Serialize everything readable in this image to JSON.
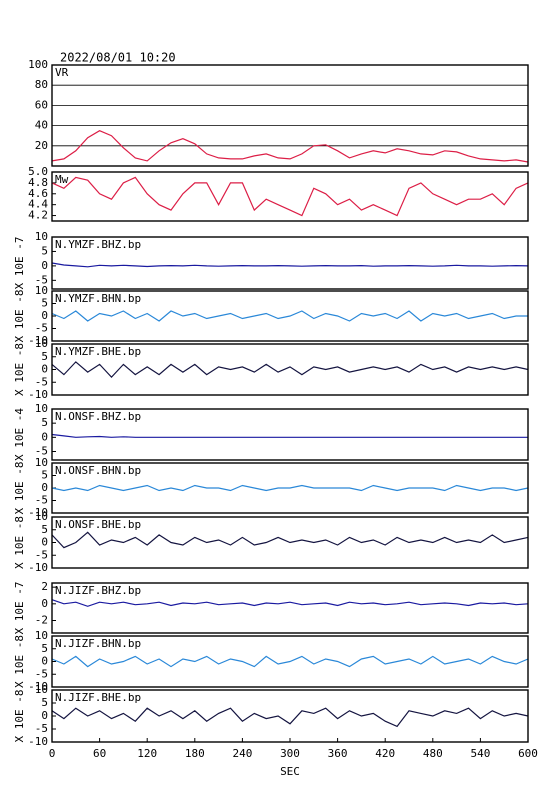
{
  "chart_data": {
    "type": "line",
    "title": "2022/08/01 10:20",
    "xlabel": "SEC",
    "xlim": [
      0,
      600
    ],
    "xticks": [
      0,
      60,
      120,
      180,
      240,
      300,
      360,
      420,
      480,
      540,
      600
    ],
    "x": [
      0,
      15,
      30,
      45,
      60,
      75,
      90,
      105,
      120,
      135,
      150,
      165,
      180,
      195,
      210,
      225,
      240,
      255,
      270,
      285,
      300,
      315,
      330,
      345,
      360,
      375,
      390,
      405,
      420,
      435,
      450,
      465,
      480,
      495,
      510,
      525,
      540,
      555,
      570,
      585,
      600
    ],
    "panels": [
      {
        "ylim": [
          0,
          100
        ],
        "yticks": [
          20,
          40,
          60,
          80,
          100
        ],
        "grid": true,
        "series": [
          {
            "name": "VR",
            "color": "#dc1e46",
            "values": [
              5,
              7,
              15,
              28,
              35,
              30,
              18,
              8,
              5,
              15,
              23,
              27,
              22,
              12,
              8,
              7,
              7,
              10,
              12,
              8,
              7,
              12,
              20,
              21,
              15,
              8,
              12,
              15,
              13,
              17,
              15,
              12,
              11,
              15,
              14,
              10,
              7,
              6,
              5,
              6,
              4
            ]
          }
        ]
      },
      {
        "ylim": [
          4.1,
          5.0
        ],
        "yticks": [
          4.2,
          4.4,
          4.6,
          4.8,
          {
            "value": 5,
            "label": "5.0"
          }
        ],
        "grid": false,
        "series": [
          {
            "name": "Mw",
            "color": "#dc1e46",
            "values": [
              4.8,
              4.7,
              4.9,
              4.85,
              4.6,
              4.5,
              4.8,
              4.9,
              4.6,
              4.4,
              4.3,
              4.6,
              4.8,
              4.8,
              4.4,
              4.8,
              4.8,
              4.3,
              4.5,
              4.4,
              4.3,
              4.2,
              4.7,
              4.6,
              4.4,
              4.5,
              4.3,
              4.4,
              4.3,
              4.2,
              4.7,
              4.8,
              4.6,
              4.5,
              4.4,
              4.5,
              4.5,
              4.6,
              4.4,
              4.7,
              4.8
            ]
          }
        ]
      },
      {
        "ylabel": "X 10E -7",
        "ylim": [
          -8,
          10
        ],
        "yticks": [
          -5,
          0,
          5,
          10
        ],
        "grid": false,
        "series": [
          {
            "name": "N.YMZF.BHZ.bp",
            "color": "#1a1aa0",
            "values": [
              1,
              0.3,
              0,
              -0.3,
              0.2,
              0,
              0.2,
              0,
              -0.2,
              0,
              0.1,
              0,
              0.2,
              0,
              -0.1,
              0,
              0.1,
              0,
              0,
              0.1,
              0,
              -0.1,
              0,
              0.1,
              0,
              0,
              0.1,
              -0.1,
              0,
              0,
              0.1,
              0,
              -0.1,
              0,
              0.2,
              0,
              0,
              -0.1,
              0,
              0.1,
              0
            ]
          }
        ]
      },
      {
        "ylabel": "X 10E -8",
        "ylim": [
          -10,
          10
        ],
        "yticks": [
          -10,
          -5,
          0,
          5,
          10
        ],
        "grid": false,
        "series": [
          {
            "name": "N.YMZF.BHN.bp",
            "color": "#2a88d8",
            "values": [
              1,
              -1,
              2,
              -2,
              1,
              0,
              2,
              -1,
              1,
              -2,
              2,
              0,
              1,
              -1,
              0,
              1,
              -1,
              0,
              1,
              -1,
              0,
              2,
              -1,
              1,
              0,
              -2,
              1,
              0,
              1,
              -1,
              2,
              -2,
              1,
              0,
              1,
              -1,
              0,
              1,
              -1,
              0,
              0
            ]
          }
        ]
      },
      {
        "ylabel": "X 10E -8",
        "ylim": [
          -10,
          10
        ],
        "yticks": [
          -10,
          -5,
          0,
          5,
          10
        ],
        "grid": false,
        "series": [
          {
            "name": "N.YMZF.BHE.bp",
            "color": "#141440",
            "values": [
              2,
              -2,
              3,
              -1,
              2,
              -3,
              2,
              -2,
              1,
              -2,
              2,
              -1,
              2,
              -2,
              1,
              0,
              1,
              -1,
              2,
              -1,
              1,
              -2,
              1,
              0,
              1,
              -1,
              0,
              1,
              0,
              1,
              -1,
              2,
              0,
              1,
              -1,
              1,
              0,
              1,
              0,
              1,
              0
            ]
          }
        ]
      },
      {
        "ylabel": "X 10E -4",
        "ylim": [
          -8,
          10
        ],
        "yticks": [
          -5,
          0,
          5,
          10
        ],
        "grid": false,
        "series": [
          {
            "name": "N.ONSF.BHZ.bp",
            "color": "#1a1aa0",
            "values": [
              1,
              0.5,
              0,
              0.2,
              0.3,
              0,
              0.2,
              0,
              0,
              0,
              0,
              0,
              0,
              0,
              0,
              0,
              0,
              0,
              0,
              0,
              0,
              0,
              0,
              0,
              0,
              0,
              0,
              0,
              0,
              0,
              0,
              0,
              0,
              0,
              0,
              0,
              0,
              0,
              0,
              0,
              0
            ]
          }
        ]
      },
      {
        "ylabel": "X 10E -8",
        "ylim": [
          -10,
          10
        ],
        "yticks": [
          -10,
          -5,
          0,
          5,
          10
        ],
        "grid": false,
        "series": [
          {
            "name": "N.ONSF.BHN.bp",
            "color": "#2a88d8",
            "values": [
              0,
              -1,
              0,
              -1,
              1,
              0,
              -1,
              0,
              1,
              -1,
              0,
              -1,
              1,
              0,
              0,
              -1,
              1,
              0,
              -1,
              0,
              0,
              1,
              0,
              0,
              0,
              0,
              -1,
              1,
              0,
              -1,
              0,
              0,
              0,
              -1,
              1,
              0,
              -1,
              0,
              0,
              -1,
              0
            ]
          }
        ]
      },
      {
        "ylabel": "X 10E -8",
        "ylim": [
          -10,
          10
        ],
        "yticks": [
          -10,
          -5,
          0,
          5,
          10
        ],
        "grid": false,
        "series": [
          {
            "name": "N.ONSF.BHE.bp",
            "color": "#141440",
            "values": [
              3,
              -2,
              0,
              4,
              -1,
              1,
              0,
              2,
              -1,
              3,
              0,
              -1,
              2,
              0,
              1,
              -1,
              2,
              -1,
              0,
              2,
              0,
              1,
              0,
              1,
              -1,
              2,
              0,
              1,
              -1,
              2,
              0,
              1,
              0,
              2,
              0,
              1,
              0,
              3,
              0,
              1,
              2
            ]
          }
        ]
      },
      {
        "ylabel": "X 10E -7",
        "ylim": [
          -3.5,
          2.5
        ],
        "yticks": [
          -2,
          0,
          2
        ],
        "grid": false,
        "series": [
          {
            "name": "N.JIZF.BHZ.bp",
            "color": "#1a1aa0",
            "values": [
              0.5,
              0,
              0.2,
              -0.3,
              0.2,
              0,
              0.2,
              -0.1,
              0,
              0.2,
              -0.2,
              0.1,
              0,
              0.2,
              -0.1,
              0,
              0.1,
              -0.2,
              0.1,
              0,
              0.2,
              -0.1,
              0,
              0.1,
              -0.2,
              0.2,
              0,
              0.1,
              -0.1,
              0,
              0.2,
              -0.1,
              0,
              0.1,
              0,
              -0.2,
              0.1,
              0,
              0.1,
              -0.1,
              0
            ]
          }
        ]
      },
      {
        "ylabel": "X 10E -8",
        "ylim": [
          -10,
          10
        ],
        "yticks": [
          -10,
          -5,
          0,
          5,
          10
        ],
        "grid": false,
        "series": [
          {
            "name": "N.JIZF.BHN.bp",
            "color": "#2a88d8",
            "values": [
              1,
              -1,
              2,
              -2,
              1,
              -1,
              0,
              2,
              -1,
              1,
              -2,
              1,
              0,
              2,
              -1,
              1,
              0,
              -2,
              2,
              -1,
              0,
              2,
              -1,
              1,
              0,
              -2,
              1,
              2,
              -1,
              0,
              1,
              -1,
              2,
              -1,
              0,
              1,
              -1,
              2,
              0,
              -1,
              1
            ]
          }
        ]
      },
      {
        "ylabel": "X 10E -8",
        "ylim": [
          -10,
          10
        ],
        "yticks": [
          -10,
          -5,
          0,
          5,
          10
        ],
        "grid": false,
        "series": [
          {
            "name": "N.JIZF.BHE.bp",
            "color": "#141440",
            "values": [
              2,
              -1,
              3,
              0,
              2,
              -1,
              1,
              -2,
              3,
              0,
              2,
              -1,
              2,
              -2,
              1,
              3,
              -2,
              1,
              -1,
              0,
              -3,
              2,
              1,
              3,
              -1,
              2,
              0,
              1,
              -2,
              -4,
              2,
              1,
              0,
              2,
              1,
              3,
              -1,
              2,
              0,
              1,
              0
            ]
          }
        ]
      }
    ]
  }
}
